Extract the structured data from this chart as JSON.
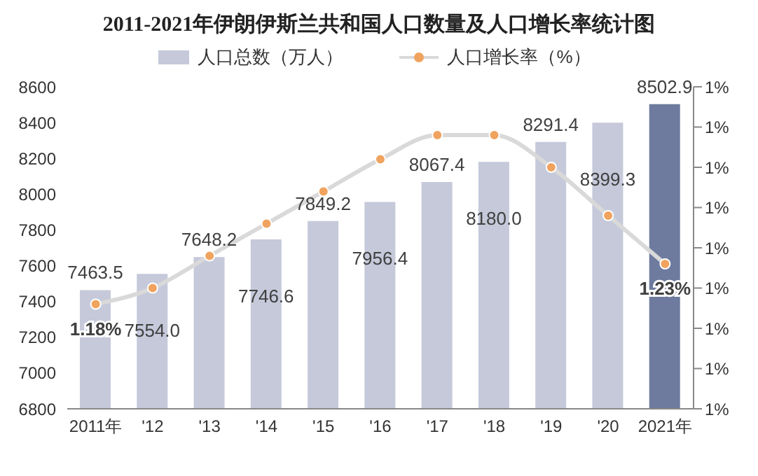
{
  "chart_data": {
    "type": "bar",
    "title": "2011-2021年伊朗伊斯兰共和国人口数量及人口增长率统计图",
    "categories": [
      "2011年",
      "'12",
      "'13",
      "'14",
      "'15",
      "'16",
      "'17",
      "'18",
      "'19",
      "'20",
      "2021年"
    ],
    "series": [
      {
        "name": "人口总数（万人）",
        "color": "#c5c9da",
        "colors": [
          "#c5c9da",
          "#c5c9da",
          "#c5c9da",
          "#c5c9da",
          "#c5c9da",
          "#c5c9da",
          "#c5c9da",
          "#c5c9da",
          "#c5c9da",
          "#c5c9da",
          "#6e7b9e"
        ],
        "values": [
          7463.5,
          7554.0,
          7648.2,
          7746.6,
          7849.2,
          7956.4,
          8067.4,
          8180.0,
          8291.4,
          8399.3,
          8502.9
        ],
        "value_labels": [
          "7463.5",
          "7554.0",
          "7648.2",
          "7746.6",
          "7849.2",
          "7956.4",
          "8067.4",
          "8180.0",
          "8291.4",
          "8399.3",
          "8502.9"
        ]
      },
      {
        "name": "人口增长率（%）",
        "type": "line",
        "axis": "y2",
        "color": "#d9d9d9",
        "values": [
          1.18,
          1.2,
          1.24,
          1.28,
          1.32,
          1.36,
          1.39,
          1.39,
          1.35,
          1.29,
          1.23
        ],
        "value_labels": [
          "1.18%",
          null,
          null,
          null,
          null,
          null,
          null,
          null,
          null,
          null,
          "1.23%"
        ]
      }
    ],
    "ylim": [
      6800,
      8600
    ],
    "yticks": [
      6800,
      7000,
      7200,
      7400,
      7600,
      7800,
      8000,
      8200,
      8400,
      8600
    ],
    "y2lim": [
      1.05,
      1.45
    ],
    "y2ticks": [
      {
        "value": 1.05,
        "label": "1%"
      },
      {
        "value": 1.1,
        "label": "1%"
      },
      {
        "value": 1.15,
        "label": "1%"
      },
      {
        "value": 1.2,
        "label": "1%"
      },
      {
        "value": 1.25,
        "label": "1%"
      },
      {
        "value": 1.3,
        "label": "1%"
      },
      {
        "value": 1.35,
        "label": "1%"
      },
      {
        "value": 1.4,
        "label": "1%"
      },
      {
        "value": 1.45,
        "label": "1%"
      }
    ],
    "marker": "circle",
    "legend": "top",
    "grid": false
  }
}
